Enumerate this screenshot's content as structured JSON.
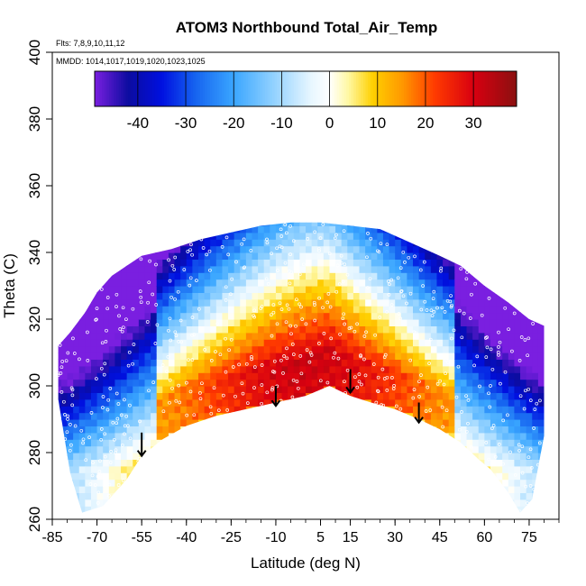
{
  "chart_data": {
    "type": "heatmap",
    "title": "ATOM3 Northbound Total_Air_Temp",
    "flights_label": "Flts: 7,8,9,10,11,12",
    "dates_label": "MMDD: 1014,1017,1019,1020,1023,1025",
    "xlabel": "Latitude (deg N)",
    "ylabel": "Theta (C)",
    "xlim": [
      -85,
      85
    ],
    "ylim": [
      260,
      400
    ],
    "x_tick_labels": [
      "-85",
      "-70",
      "-55",
      "-40",
      "-25",
      "-10",
      "5",
      "15",
      "30",
      "45",
      "60",
      "75"
    ],
    "x_tick_values": [
      -85,
      -70,
      -55,
      -40,
      -25,
      -10,
      5,
      15,
      30,
      45,
      60,
      75
    ],
    "y_tick_labels": [
      "260",
      "280",
      "300",
      "320",
      "340",
      "360",
      "380",
      "400"
    ],
    "y_tick_values": [
      260,
      280,
      300,
      320,
      340,
      360,
      380,
      400
    ],
    "colorbar": {
      "range": [
        -49,
        39
      ],
      "tick_labels": [
        "-40",
        "-30",
        "-20",
        "-10",
        "0",
        "10",
        "20",
        "30"
      ],
      "tick_values": [
        -40,
        -30,
        -20,
        -10,
        0,
        10,
        20,
        30
      ],
      "stops": [
        {
          "value": -49,
          "color": "#7a1fe0"
        },
        {
          "value": -42,
          "color": "#0c0ca0"
        },
        {
          "value": -35,
          "color": "#0010e0"
        },
        {
          "value": -28,
          "color": "#1664f0"
        },
        {
          "value": -20,
          "color": "#3aa6ff"
        },
        {
          "value": -12,
          "color": "#8fd0ff"
        },
        {
          "value": -4,
          "color": "#e6f6ff"
        },
        {
          "value": 0,
          "color": "#ffffff"
        },
        {
          "value": 4,
          "color": "#fff7a0"
        },
        {
          "value": 9,
          "color": "#ffd000"
        },
        {
          "value": 15,
          "color": "#ff9a00"
        },
        {
          "value": 22,
          "color": "#ff3a00"
        },
        {
          "value": 30,
          "color": "#d80010"
        },
        {
          "value": 39,
          "color": "#8b1010"
        }
      ]
    },
    "coverage_top": [
      [
        -83,
        312
      ],
      [
        -79,
        316
      ],
      [
        -74,
        322
      ],
      [
        -70,
        328
      ],
      [
        -65,
        333
      ],
      [
        -60,
        336
      ],
      [
        -55,
        339
      ],
      [
        -45,
        341
      ],
      [
        -35,
        344
      ],
      [
        -25,
        346
      ],
      [
        -15,
        348
      ],
      [
        -5,
        349
      ],
      [
        5,
        349
      ],
      [
        15,
        348
      ],
      [
        25,
        347
      ],
      [
        35,
        343
      ],
      [
        45,
        339
      ],
      [
        52,
        336
      ],
      [
        60,
        330
      ],
      [
        68,
        325
      ],
      [
        75,
        320
      ],
      [
        80,
        318
      ]
    ],
    "tropopause_floor": [
      [
        -60,
        278
      ],
      [
        -55,
        280
      ],
      [
        -48,
        284
      ],
      [
        -40,
        288
      ],
      [
        -30,
        291
      ],
      [
        -20,
        293
      ],
      [
        -10,
        295
      ],
      [
        0,
        297
      ],
      [
        8,
        300
      ],
      [
        15,
        297
      ],
      [
        22,
        295
      ],
      [
        30,
        293
      ],
      [
        38,
        290
      ],
      [
        45,
        287
      ],
      [
        52,
        284
      ]
    ],
    "coverage_bottom": [
      [
        -83,
        296
      ],
      [
        -79,
        274
      ],
      [
        -75,
        262
      ],
      [
        -68,
        264
      ],
      [
        -60,
        272
      ],
      [
        -55,
        279
      ],
      [
        -48,
        284
      ],
      [
        -40,
        288
      ],
      [
        -30,
        291
      ],
      [
        -20,
        293
      ],
      [
        -10,
        295
      ],
      [
        0,
        297
      ],
      [
        8,
        300
      ],
      [
        15,
        297
      ],
      [
        22,
        295
      ],
      [
        30,
        293
      ],
      [
        38,
        290
      ],
      [
        45,
        287
      ],
      [
        52,
        283
      ],
      [
        58,
        278
      ],
      [
        62,
        275
      ],
      [
        68,
        268
      ],
      [
        72,
        262
      ],
      [
        76,
        266
      ],
      [
        80,
        285
      ]
    ],
    "arrows": [
      {
        "lat": -55,
        "theta_top": 286,
        "theta_tip": 279
      },
      {
        "lat": -10,
        "theta_top": 300,
        "theta_tip": 294
      },
      {
        "lat": 15,
        "theta_top": 305,
        "theta_tip": 298
      },
      {
        "lat": 38,
        "theta_top": 295,
        "theta_tip": 289
      }
    ]
  }
}
